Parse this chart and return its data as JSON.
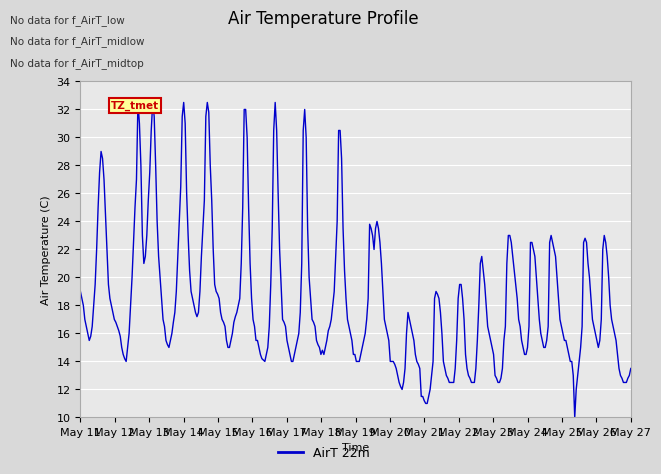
{
  "title": "Air Temperature Profile",
  "xlabel": "Time",
  "ylabel": "Air Temperature (C)",
  "ylim": [
    10,
    34
  ],
  "yticks": [
    10,
    12,
    14,
    16,
    18,
    20,
    22,
    24,
    26,
    28,
    30,
    32,
    34
  ],
  "xtick_labels": [
    "May 11",
    "May 12",
    "May 13",
    "May 14",
    "May 15",
    "May 16",
    "May 17",
    "May 18",
    "May 19",
    "May 20",
    "May 21",
    "May 22",
    "May 23",
    "May 24",
    "May 25",
    "May 26",
    "May 27"
  ],
  "line_color": "#0000cc",
  "legend_label": "AirT 22m",
  "legend_line_color": "#0000cc",
  "no_data_labels": [
    "No data for f_AirT_low",
    "No data for f_AirT_midlow",
    "No data for f_AirT_midtop"
  ],
  "annotation_text": "TZ_tmet",
  "annotation_color": "#cc0000",
  "annotation_bg": "#ffff99",
  "annotation_border": "#cc0000",
  "title_fontsize": 12,
  "axis_label_fontsize": 8,
  "tick_fontsize": 8,
  "values": [
    19.0,
    18.5,
    18.0,
    17.0,
    16.5,
    16.0,
    15.5,
    15.8,
    16.5,
    18.0,
    19.5,
    22.0,
    25.0,
    27.5,
    29.0,
    28.5,
    27.0,
    24.5,
    22.0,
    19.5,
    18.5,
    18.0,
    17.5,
    17.0,
    16.8,
    16.5,
    16.2,
    15.8,
    15.0,
    14.5,
    14.2,
    14.0,
    15.0,
    16.0,
    18.0,
    20.0,
    22.5,
    25.0,
    27.0,
    32.5,
    31.0,
    28.0,
    23.0,
    21.0,
    21.5,
    23.0,
    25.5,
    27.5,
    30.5,
    32.5,
    31.5,
    28.0,
    24.0,
    21.5,
    20.0,
    18.5,
    17.0,
    16.5,
    15.5,
    15.2,
    15.0,
    15.5,
    16.0,
    16.8,
    17.5,
    19.0,
    21.5,
    24.0,
    26.5,
    31.5,
    32.5,
    31.0,
    26.0,
    23.0,
    20.5,
    19.0,
    18.5,
    18.0,
    17.5,
    17.2,
    17.5,
    19.0,
    21.5,
    23.5,
    25.5,
    31.5,
    32.5,
    31.8,
    28.0,
    25.5,
    22.0,
    19.5,
    19.0,
    18.8,
    18.5,
    17.5,
    17.0,
    16.8,
    16.5,
    15.5,
    15.0,
    15.0,
    15.5,
    16.0,
    16.8,
    17.2,
    17.5,
    18.0,
    18.5,
    21.0,
    25.0,
    32.0,
    32.0,
    30.0,
    25.0,
    21.0,
    18.5,
    17.0,
    16.5,
    15.5,
    15.5,
    15.0,
    14.5,
    14.2,
    14.1,
    14.0,
    14.5,
    15.0,
    16.5,
    19.5,
    23.5,
    30.5,
    32.5,
    30.5,
    26.0,
    22.0,
    19.5,
    17.0,
    16.8,
    16.5,
    15.5,
    15.0,
    14.5,
    14.0,
    14.0,
    14.5,
    15.0,
    15.5,
    16.0,
    17.5,
    21.0,
    30.5,
    32.0,
    30.0,
    23.5,
    20.0,
    18.5,
    17.0,
    16.8,
    16.5,
    15.5,
    15.2,
    15.0,
    14.5,
    14.8,
    14.5,
    15.0,
    15.5,
    16.2,
    16.5,
    17.0,
    18.0,
    19.0,
    21.5,
    24.0,
    30.5,
    30.5,
    28.5,
    23.5,
    20.5,
    18.5,
    17.0,
    16.5,
    16.0,
    15.5,
    14.5,
    14.5,
    14.0,
    14.0,
    14.0,
    14.5,
    15.0,
    15.5,
    16.0,
    17.0,
    18.5,
    23.8,
    23.5,
    23.0,
    22.0,
    23.5,
    24.0,
    23.5,
    22.5,
    21.0,
    19.0,
    17.0,
    16.5,
    16.0,
    15.5,
    14.0,
    14.0,
    14.0,
    13.8,
    13.5,
    13.0,
    12.5,
    12.2,
    12.0,
    12.5,
    13.5,
    16.0,
    17.5,
    17.0,
    16.5,
    16.0,
    15.5,
    14.5,
    14.0,
    13.8,
    13.5,
    11.5,
    11.5,
    11.2,
    11.0,
    11.0,
    11.5,
    12.0,
    13.0,
    14.0,
    18.5,
    19.0,
    18.8,
    18.5,
    17.5,
    16.0,
    14.0,
    13.5,
    13.0,
    12.8,
    12.5,
    12.5,
    12.5,
    12.5,
    13.5,
    15.5,
    18.5,
    19.5,
    19.5,
    18.5,
    17.0,
    14.5,
    13.5,
    13.0,
    12.8,
    12.5,
    12.5,
    12.5,
    13.5,
    15.5,
    18.0,
    21.0,
    21.5,
    20.5,
    19.5,
    18.0,
    16.5,
    16.0,
    15.5,
    15.0,
    14.5,
    13.0,
    12.8,
    12.5,
    12.5,
    12.8,
    13.5,
    15.5,
    16.5,
    21.0,
    23.0,
    23.0,
    22.5,
    21.5,
    20.5,
    19.5,
    18.5,
    17.0,
    16.5,
    15.5,
    15.0,
    14.5,
    14.5,
    15.0,
    16.5,
    22.5,
    22.5,
    22.0,
    21.5,
    20.0,
    18.5,
    17.0,
    16.0,
    15.5,
    15.0,
    15.0,
    15.5,
    16.5,
    22.5,
    23.0,
    22.5,
    22.0,
    21.5,
    20.0,
    18.5,
    17.0,
    16.5,
    16.0,
    15.5,
    15.5,
    15.0,
    14.5,
    14.0,
    14.0,
    13.0,
    10.0,
    12.0,
    13.0,
    14.0,
    15.0,
    16.5,
    22.5,
    22.8,
    22.5,
    21.0,
    20.0,
    18.5,
    17.0,
    16.5,
    16.0,
    15.5,
    15.0,
    15.5,
    17.0,
    22.0,
    23.0,
    22.5,
    21.5,
    20.0,
    18.0,
    17.0,
    16.5,
    16.0,
    15.5,
    14.5,
    13.5,
    13.0,
    12.8,
    12.5,
    12.5,
    12.5,
    12.8,
    13.0,
    13.5
  ]
}
